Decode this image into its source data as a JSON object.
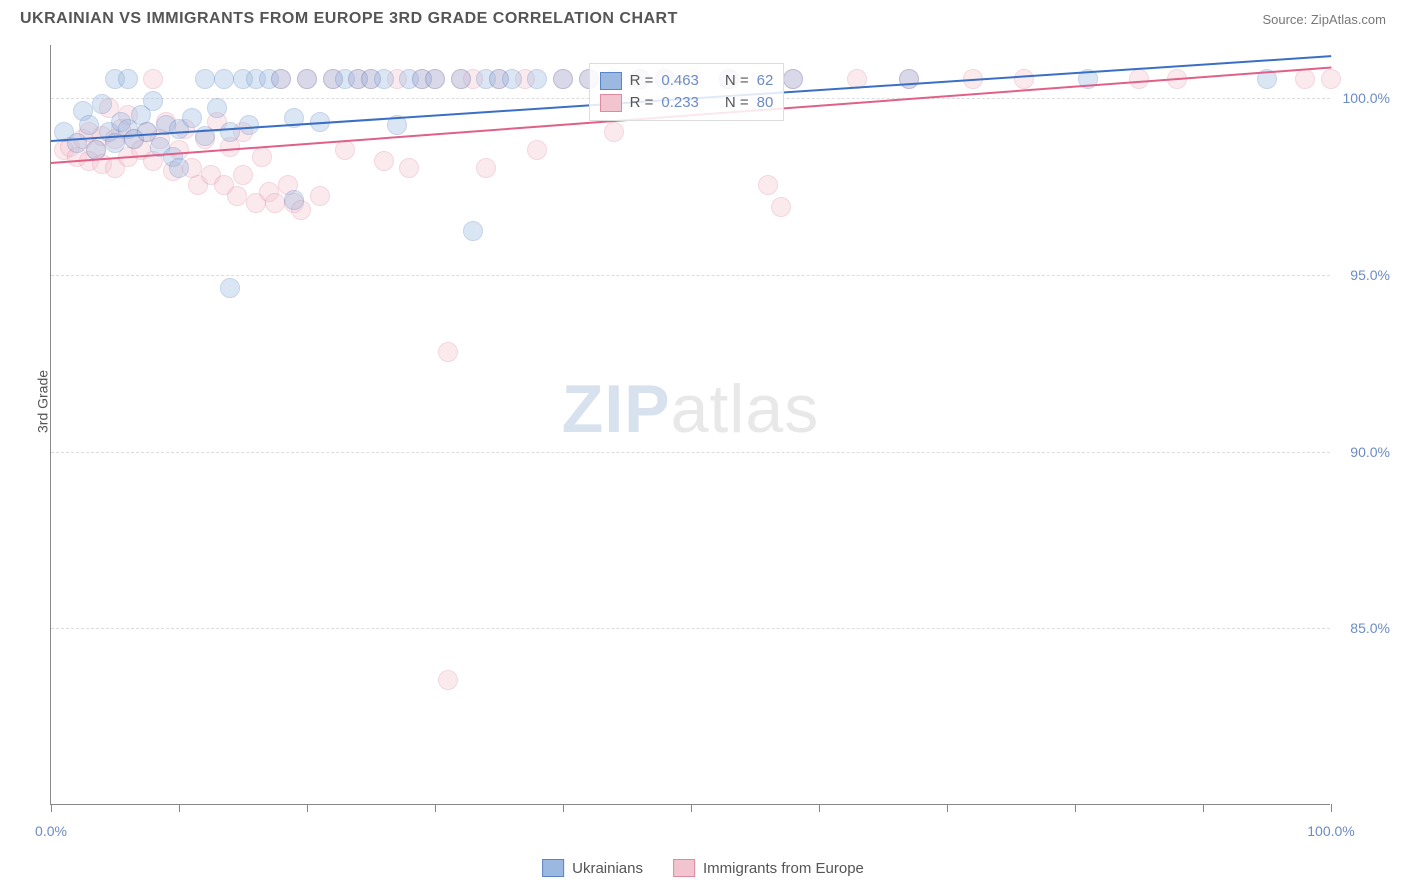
{
  "header": {
    "title": "UKRAINIAN VS IMMIGRANTS FROM EUROPE 3RD GRADE CORRELATION CHART",
    "source_label": "Source: ",
    "source_value": "ZipAtlas.com"
  },
  "chart": {
    "type": "scatter",
    "ylabel": "3rd Grade",
    "xlim": [
      0,
      100
    ],
    "ylim": [
      80,
      101.5
    ],
    "xtick_positions": [
      0,
      10,
      20,
      30,
      40,
      50,
      60,
      70,
      80,
      90,
      100
    ],
    "xtick_labels": {
      "0": "0.0%",
      "100": "100.0%"
    },
    "ytick_positions": [
      85,
      90,
      95,
      100
    ],
    "ytick_labels": [
      "85.0%",
      "90.0%",
      "95.0%",
      "100.0%"
    ],
    "background_color": "#ffffff",
    "grid_color": "#dddddd",
    "axis_color": "#888888",
    "tick_label_color": "#6b8bc4",
    "label_fontsize": 14,
    "marker_radius": 10,
    "marker_opacity": 0.35,
    "series": [
      {
        "name": "Ukrainians",
        "color_fill": "#9bb8e0",
        "color_stroke": "#5b84c4",
        "trend_color": "#3a6fc4",
        "R": "0.463",
        "N": "62",
        "trend": {
          "x1": 0,
          "y1": 98.8,
          "x2": 100,
          "y2": 101.2
        },
        "points": [
          [
            1,
            99.0
          ],
          [
            2,
            98.7
          ],
          [
            2.5,
            99.6
          ],
          [
            3,
            99.2
          ],
          [
            3.5,
            98.5
          ],
          [
            4,
            99.8
          ],
          [
            4.5,
            99.0
          ],
          [
            5,
            100.5
          ],
          [
            5,
            98.7
          ],
          [
            5.5,
            99.3
          ],
          [
            6,
            99.1
          ],
          [
            6,
            100.5
          ],
          [
            6.5,
            98.8
          ],
          [
            7,
            99.5
          ],
          [
            7.5,
            99.0
          ],
          [
            8,
            99.9
          ],
          [
            8.5,
            98.6
          ],
          [
            9,
            99.2
          ],
          [
            9.5,
            98.3
          ],
          [
            10,
            99.1
          ],
          [
            10,
            98.0
          ],
          [
            11,
            99.4
          ],
          [
            12,
            100.5
          ],
          [
            12,
            98.9
          ],
          [
            13,
            99.7
          ],
          [
            13.5,
            100.5
          ],
          [
            14,
            99.0
          ],
          [
            14,
            94.6
          ],
          [
            15,
            100.5
          ],
          [
            15.5,
            99.2
          ],
          [
            16,
            100.5
          ],
          [
            17,
            100.5
          ],
          [
            18,
            100.5
          ],
          [
            19,
            99.4
          ],
          [
            19,
            97.1
          ],
          [
            20,
            100.5
          ],
          [
            21,
            99.3
          ],
          [
            22,
            100.5
          ],
          [
            23,
            100.5
          ],
          [
            24,
            100.5
          ],
          [
            25,
            100.5
          ],
          [
            26,
            100.5
          ],
          [
            27,
            99.2
          ],
          [
            28,
            100.5
          ],
          [
            29,
            100.5
          ],
          [
            30,
            100.5
          ],
          [
            32,
            100.5
          ],
          [
            33,
            96.2
          ],
          [
            34,
            100.5
          ],
          [
            35,
            100.5
          ],
          [
            36,
            100.5
          ],
          [
            38,
            100.5
          ],
          [
            40,
            100.5
          ],
          [
            42,
            100.5
          ],
          [
            44,
            100.5
          ],
          [
            46,
            100.5
          ],
          [
            48,
            100.5
          ],
          [
            53,
            100.5
          ],
          [
            58,
            100.5
          ],
          [
            67,
            100.5
          ],
          [
            81,
            100.5
          ],
          [
            95,
            100.5
          ]
        ]
      },
      {
        "name": "Immigrants from Europe",
        "color_fill": "#f2c4d0",
        "color_stroke": "#e08aa0",
        "trend_color": "#e06088",
        "R": "0.233",
        "N": "80",
        "trend": {
          "x1": 0,
          "y1": 98.2,
          "x2": 100,
          "y2": 100.9
        },
        "points": [
          [
            1,
            98.5
          ],
          [
            1.5,
            98.6
          ],
          [
            2,
            98.3
          ],
          [
            2.5,
            98.8
          ],
          [
            3,
            98.2
          ],
          [
            3,
            99.0
          ],
          [
            3.5,
            98.5
          ],
          [
            4,
            98.9
          ],
          [
            4,
            98.1
          ],
          [
            4.5,
            99.7
          ],
          [
            5,
            98.8
          ],
          [
            5,
            98.0
          ],
          [
            5.5,
            99.1
          ],
          [
            6,
            99.5
          ],
          [
            6,
            98.3
          ],
          [
            6.5,
            98.8
          ],
          [
            7,
            98.5
          ],
          [
            7.5,
            99.0
          ],
          [
            8,
            100.5
          ],
          [
            8,
            98.2
          ],
          [
            8.5,
            98.8
          ],
          [
            9,
            99.3
          ],
          [
            9.5,
            97.9
          ],
          [
            10,
            98.5
          ],
          [
            10.5,
            99.1
          ],
          [
            11,
            98.0
          ],
          [
            11.5,
            97.5
          ],
          [
            12,
            98.8
          ],
          [
            12.5,
            97.8
          ],
          [
            13,
            99.3
          ],
          [
            13.5,
            97.5
          ],
          [
            14,
            98.6
          ],
          [
            14.5,
            97.2
          ],
          [
            15,
            99.0
          ],
          [
            15,
            97.8
          ],
          [
            16,
            97.0
          ],
          [
            16.5,
            98.3
          ],
          [
            17,
            97.3
          ],
          [
            17.5,
            97.0
          ],
          [
            18,
            100.5
          ],
          [
            18.5,
            97.5
          ],
          [
            19,
            97.0
          ],
          [
            19.5,
            96.8
          ],
          [
            20,
            100.5
          ],
          [
            21,
            97.2
          ],
          [
            22,
            100.5
          ],
          [
            23,
            98.5
          ],
          [
            24,
            100.5
          ],
          [
            25,
            100.5
          ],
          [
            26,
            98.2
          ],
          [
            27,
            100.5
          ],
          [
            28,
            98.0
          ],
          [
            29,
            100.5
          ],
          [
            30,
            100.5
          ],
          [
            31,
            83.5
          ],
          [
            31,
            92.8
          ],
          [
            32,
            100.5
          ],
          [
            33,
            100.5
          ],
          [
            34,
            98.0
          ],
          [
            35,
            100.5
          ],
          [
            37,
            100.5
          ],
          [
            38,
            98.5
          ],
          [
            40,
            100.5
          ],
          [
            42,
            100.5
          ],
          [
            44,
            99.0
          ],
          [
            46,
            100.5
          ],
          [
            48,
            100.5
          ],
          [
            50,
            100.5
          ],
          [
            53,
            100.5
          ],
          [
            56,
            97.5
          ],
          [
            57,
            96.9
          ],
          [
            58,
            100.5
          ],
          [
            63,
            100.5
          ],
          [
            67,
            100.5
          ],
          [
            72,
            100.5
          ],
          [
            76,
            100.5
          ],
          [
            85,
            100.5
          ],
          [
            88,
            100.5
          ],
          [
            98,
            100.5
          ],
          [
            100,
            100.5
          ]
        ]
      }
    ],
    "stats_box": {
      "R_label": "R =",
      "N_label": "N ="
    },
    "legend": {
      "items": [
        "Ukrainians",
        "Immigrants from Europe"
      ]
    },
    "watermark": {
      "zip": "ZIP",
      "atlas": "atlas"
    }
  }
}
